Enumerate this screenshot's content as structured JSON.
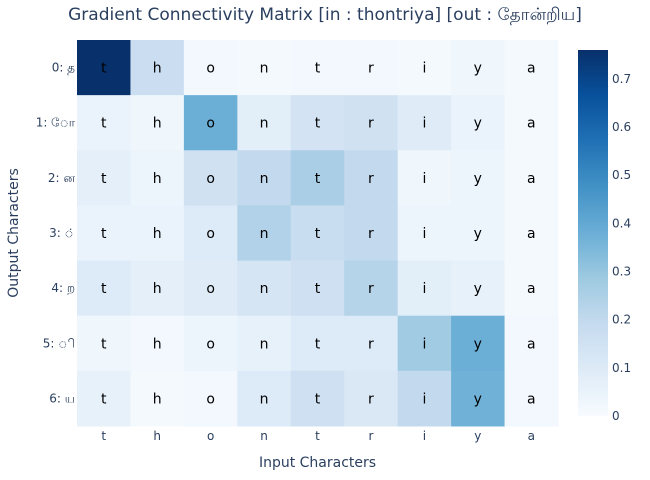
{
  "chart_data": {
    "type": "heatmap",
    "title": "Gradient Connectivity Matrix [in : thontriya] [out : தோன்றிய]",
    "xlabel": "Input Characters",
    "ylabel": "Output Characters",
    "x_categories": [
      "t",
      "h",
      "o",
      "n",
      "t",
      "r",
      "i",
      "y",
      "a"
    ],
    "y_categories": [
      "0: த",
      "1: ோ",
      "2: ன",
      "3: ்",
      "4: ற",
      "5: ி",
      "6: ய"
    ],
    "cell_text": [
      [
        "t",
        "h",
        "o",
        "n",
        "t",
        "r",
        "i",
        "y",
        "a"
      ],
      [
        "t",
        "h",
        "o",
        "n",
        "t",
        "r",
        "i",
        "y",
        "a"
      ],
      [
        "t",
        "h",
        "o",
        "n",
        "t",
        "r",
        "i",
        "y",
        "a"
      ],
      [
        "t",
        "h",
        "o",
        "n",
        "t",
        "r",
        "i",
        "y",
        "a"
      ],
      [
        "t",
        "h",
        "o",
        "n",
        "t",
        "r",
        "i",
        "y",
        "a"
      ],
      [
        "t",
        "h",
        "o",
        "n",
        "t",
        "r",
        "i",
        "y",
        "a"
      ],
      [
        "t",
        "h",
        "o",
        "n",
        "t",
        "r",
        "i",
        "y",
        "a"
      ]
    ],
    "values": [
      [
        0.76,
        0.17,
        0.02,
        0.01,
        0.02,
        0.02,
        0.01,
        0.03,
        0.01
      ],
      [
        0.05,
        0.03,
        0.38,
        0.08,
        0.14,
        0.15,
        0.09,
        0.05,
        0.01
      ],
      [
        0.07,
        0.04,
        0.15,
        0.2,
        0.26,
        0.2,
        0.03,
        0.04,
        0.01
      ],
      [
        0.05,
        0.05,
        0.1,
        0.24,
        0.18,
        0.2,
        0.04,
        0.04,
        0.01
      ],
      [
        0.1,
        0.07,
        0.09,
        0.13,
        0.16,
        0.23,
        0.08,
        0.06,
        0.01
      ],
      [
        0.03,
        0.02,
        0.04,
        0.06,
        0.1,
        0.1,
        0.28,
        0.38,
        0.02
      ],
      [
        0.06,
        0.01,
        0.02,
        0.1,
        0.16,
        0.11,
        0.2,
        0.37,
        0.02
      ]
    ],
    "zmin": 0,
    "zmax": 0.76,
    "colorscale": "Blues",
    "colorbar_ticks": [
      0,
      0.1,
      0.2,
      0.3,
      0.4,
      0.5,
      0.6,
      0.7
    ],
    "colorbar_tick_labels": [
      "0",
      "0.1",
      "0.2",
      "0.3",
      "0.4",
      "0.5",
      "0.6",
      "0.7"
    ],
    "grid": false
  }
}
